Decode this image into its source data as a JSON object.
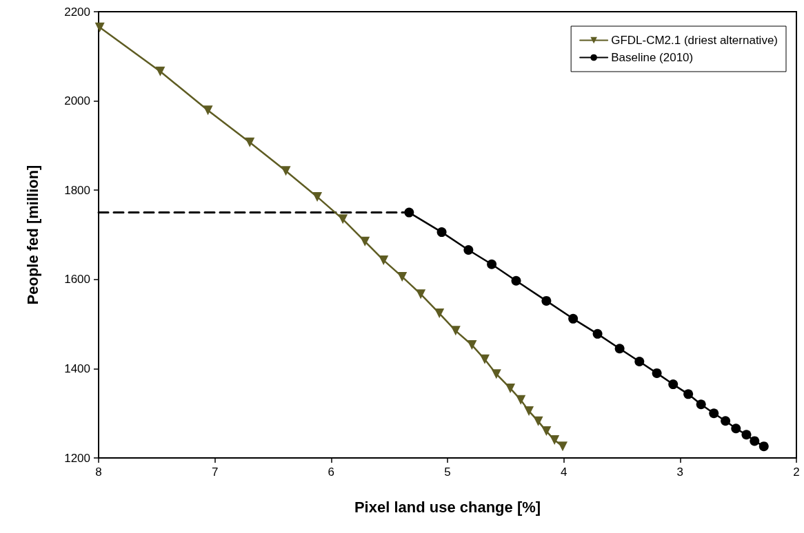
{
  "chart_data": {
    "type": "line",
    "xlabel": "Pixel land use change [%]",
    "ylabel": "People fed [million]",
    "xlim": [
      8,
      2
    ],
    "xticks": [
      8,
      7,
      6,
      5,
      4,
      3,
      2
    ],
    "ylim": [
      1200,
      2200
    ],
    "yticks": [
      1200,
      1400,
      1600,
      1800,
      2000,
      2200
    ],
    "grid": false,
    "legend": "top right",
    "series": [
      {
        "name": "GFDL-CM2.1 (driest alternative)",
        "color": "#5e5c22",
        "marker": "triangle",
        "line_style": "solid",
        "x": [
          7.99,
          7.47,
          7.06,
          6.7,
          6.39,
          6.12,
          5.9,
          5.71,
          5.55,
          5.39,
          5.23,
          5.07,
          4.93,
          4.79,
          4.68,
          4.58,
          4.46,
          4.37,
          4.3,
          4.22,
          4.15,
          4.08,
          4.01
        ],
        "values": [
          2165,
          2066,
          1979,
          1907,
          1843,
          1785,
          1735,
          1685,
          1643,
          1606,
          1567,
          1524,
          1485,
          1453,
          1421,
          1388,
          1356,
          1330,
          1305,
          1282,
          1260,
          1240,
          1226
        ]
      },
      {
        "name": "Baseline (2010)",
        "color": "#000000",
        "marker": "circle",
        "line_style": "solid",
        "x": [
          5.33,
          5.05,
          4.82,
          4.62,
          4.41,
          4.15,
          3.92,
          3.71,
          3.52,
          3.35,
          3.2,
          3.06,
          2.93,
          2.82,
          2.71,
          2.61,
          2.52,
          2.43,
          2.36,
          2.28
        ],
        "values": [
          1750,
          1706,
          1666,
          1634,
          1597,
          1552,
          1512,
          1478,
          1445,
          1416,
          1390,
          1365,
          1343,
          1320,
          1300,
          1283,
          1266,
          1252,
          1238,
          1226
        ]
      },
      {
        "color": "#000000",
        "marker": "none",
        "line_style": "dashed",
        "x": [
          8,
          5.33
        ],
        "values": [
          1750,
          1750
        ]
      }
    ]
  }
}
